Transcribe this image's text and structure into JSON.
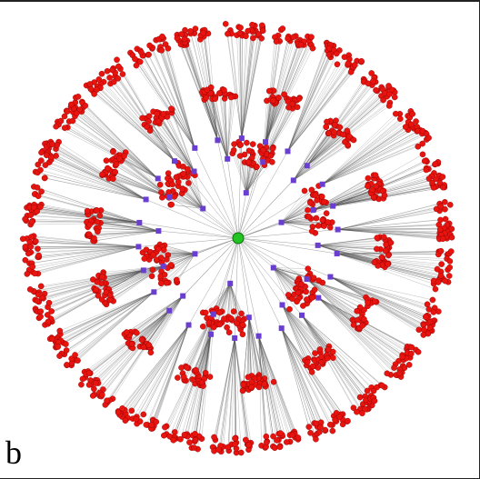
{
  "panel_label": "b",
  "colors": {
    "hub": "#22c422",
    "intermediate": "#6a3ed0",
    "leaf": "#e8140f",
    "leaf_stroke": "#8a0000",
    "edge": "#555555",
    "background": "#ffffff"
  }
}
